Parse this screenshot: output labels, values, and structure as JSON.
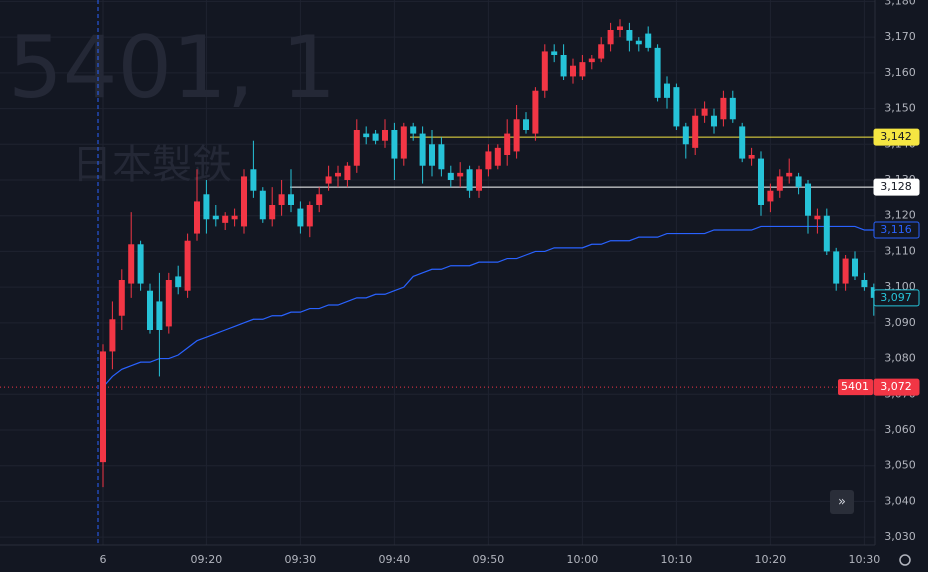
{
  "chart_data": {
    "type": "candlestick",
    "watermark": {
      "symbol": "5401, 1",
      "name": "日本製鉄"
    },
    "up_color": "#f23645",
    "down_color": "#26c3d8",
    "categories": [
      "6",
      null,
      null,
      null,
      null,
      null,
      null,
      null,
      null,
      null,
      null,
      "09:20",
      null,
      null,
      null,
      null,
      null,
      null,
      null,
      null,
      null,
      "09:30",
      null,
      null,
      null,
      null,
      null,
      null,
      null,
      null,
      null,
      "09:40",
      null,
      null,
      null,
      null,
      null,
      null,
      null,
      null,
      null,
      "09:50",
      null,
      null,
      null,
      null,
      null,
      null,
      null,
      null,
      null,
      "10:00",
      null,
      null,
      null,
      null,
      null,
      null,
      null,
      null,
      null,
      "10:10",
      null,
      null,
      null,
      null,
      null,
      null,
      null,
      null,
      null,
      "10:20",
      null,
      null,
      null,
      null,
      null,
      null,
      null,
      null,
      null,
      "10:30",
      null
    ],
    "open": [
      3051,
      3082,
      3092,
      3101,
      3112,
      3099,
      3096,
      3089,
      3103,
      3099,
      3115,
      3126,
      3120,
      3118,
      3119,
      3117,
      3133,
      3127,
      3119,
      3123,
      3126,
      3122,
      3117,
      3123,
      3129,
      3131,
      3130,
      3134,
      3143,
      3143,
      3141,
      3144,
      3136,
      3145,
      3143,
      3140,
      3140,
      3132,
      3131,
      3133,
      3127,
      3133,
      3134,
      3137,
      3138,
      3147,
      3143,
      3155,
      3166,
      3165,
      3159,
      3159,
      3163,
      3164,
      3168,
      3172,
      3172,
      3169,
      3171,
      3167,
      3157,
      3156,
      3145,
      3139,
      3148,
      3148,
      3147,
      3153,
      3145,
      3136,
      3136,
      3124,
      3127,
      3131,
      3131,
      3129,
      3119,
      3120,
      3110,
      3101,
      3108,
      3102,
      3100
    ],
    "high": [
      3084,
      3096,
      3105,
      3121,
      3113,
      3101,
      3104,
      3104,
      3106,
      3115,
      3133,
      3130,
      3123,
      3121,
      3122,
      3133,
      3141,
      3128,
      3128,
      3130,
      3133,
      3124,
      3124,
      3128,
      3134,
      3134,
      3135,
      3147,
      3145,
      3144,
      3147,
      3146,
      3146,
      3146,
      3145,
      3144,
      3142,
      3134,
      3135,
      3134,
      3134,
      3140,
      3140,
      3147,
      3151,
      3149,
      3156,
      3168,
      3168,
      3168,
      3164,
      3165,
      3165,
      3170,
      3174,
      3175,
      3174,
      3170,
      3173,
      3168,
      3159,
      3157,
      3146,
      3150,
      3152,
      3150,
      3155,
      3155,
      3146,
      3139,
      3138,
      3129,
      3133,
      3136,
      3132,
      3130,
      3122,
      3122,
      3111,
      3109,
      3110,
      3104,
      3101
    ],
    "low": [
      3044,
      3077,
      3088,
      3097,
      3099,
      3087,
      3075,
      3087,
      3098,
      3097,
      3113,
      3115,
      3117,
      3116,
      3117,
      3115,
      3125,
      3118,
      3117,
      3120,
      3121,
      3115,
      3114,
      3121,
      3127,
      3128,
      3128,
      3132,
      3140,
      3140,
      3139,
      3130,
      3134,
      3141,
      3129,
      3131,
      3131,
      3128,
      3128,
      3125,
      3125,
      3131,
      3133,
      3134,
      3136,
      3143,
      3141,
      3153,
      3163,
      3158,
      3157,
      3158,
      3161,
      3163,
      3166,
      3170,
      3166,
      3166,
      3166,
      3152,
      3150,
      3144,
      3136,
      3137,
      3146,
      3143,
      3145,
      3146,
      3135,
      3134,
      3120,
      3121,
      3125,
      3129,
      3126,
      3115,
      3115,
      3109,
      3099,
      3099,
      3102,
      3099,
      3092
    ],
    "close": [
      3082,
      3091,
      3102,
      3112,
      3101,
      3088,
      3088,
      3102,
      3100,
      3113,
      3124,
      3119,
      3119,
      3120,
      3120,
      3131,
      3127,
      3119,
      3123,
      3126,
      3123,
      3117,
      3123,
      3126,
      3131,
      3132,
      3134,
      3144,
      3142,
      3141,
      3144,
      3136,
      3145,
      3143,
      3134,
      3134,
      3133,
      3130,
      3132,
      3127,
      3133,
      3138,
      3139,
      3143,
      3147,
      3144,
      3155,
      3166,
      3165,
      3159,
      3162,
      3163,
      3164,
      3168,
      3172,
      3173,
      3169,
      3168,
      3167,
      3153,
      3153,
      3145,
      3140,
      3148,
      3150,
      3145,
      3153,
      3147,
      3136,
      3137,
      3123,
      3127,
      3131,
      3132,
      3128,
      3120,
      3120,
      3110,
      3101,
      3108,
      3103,
      3100,
      3097
    ],
    "vwap": {
      "color": "#2962ff",
      "values": [
        3072,
        3075,
        3077,
        3078,
        3079,
        3079,
        3080,
        3080,
        3081,
        3083,
        3085,
        3086,
        3087,
        3088,
        3089,
        3090,
        3091,
        3091,
        3092,
        3092,
        3093,
        3093,
        3094,
        3094,
        3095,
        3095,
        3096,
        3097,
        3097,
        3098,
        3098,
        3099,
        3100,
        3103,
        3104,
        3105,
        3105,
        3106,
        3106,
        3106,
        3107,
        3107,
        3107,
        3108,
        3108,
        3109,
        3110,
        3110,
        3111,
        3111,
        3111,
        3111,
        3112,
        3112,
        3113,
        3113,
        3113,
        3114,
        3114,
        3114,
        3115,
        3115,
        3115,
        3115,
        3115,
        3116,
        3116,
        3116,
        3116,
        3116,
        3117,
        3117,
        3117,
        3117,
        3117,
        3117,
        3117,
        3117,
        3117,
        3117,
        3117,
        3116,
        3116
      ]
    },
    "price_lines": [
      {
        "value": 3142,
        "label": "3,142",
        "color": "#f5e642",
        "text_color": "#131722"
      },
      {
        "value": 3128,
        "label": "3,128",
        "color": "#ffffff",
        "text_color": "#131722"
      },
      {
        "value": 3116,
        "label": "3,116",
        "color": "#2962ff",
        "text_color": "#2962ff"
      },
      {
        "value": 3097,
        "label": "3,097",
        "color": "#26c3d8",
        "text_color": "#26c3d8"
      },
      {
        "value": 3072,
        "label": "3,072",
        "name": "5401",
        "color": "#f23645",
        "text_color": "#ffffff"
      }
    ],
    "ylim": [
      3027.8,
      3180.4
    ],
    "yticks": [
      {
        "value": 3030,
        "label": "3,030"
      },
      {
        "value": 3040,
        "label": "3,040"
      },
      {
        "value": 3050,
        "label": "3,050"
      },
      {
        "value": 3060,
        "label": "3,060"
      },
      {
        "value": 3070,
        "label": "3,070"
      },
      {
        "value": 3080,
        "label": "3,080"
      },
      {
        "value": 3090,
        "label": "3,090"
      },
      {
        "value": 3100,
        "label": "3,100"
      },
      {
        "value": 3110,
        "label": "3,110"
      },
      {
        "value": 3120,
        "label": "3,120"
      },
      {
        "value": 3130,
        "label": "3,130"
      },
      {
        "value": 3140,
        "label": "3,140"
      },
      {
        "value": 3150,
        "label": "3,150"
      },
      {
        "value": 3160,
        "label": "3,160"
      },
      {
        "value": 3170,
        "label": "3,170"
      },
      {
        "value": 3180,
        "label": "3,180"
      }
    ],
    "grid": true
  }
}
